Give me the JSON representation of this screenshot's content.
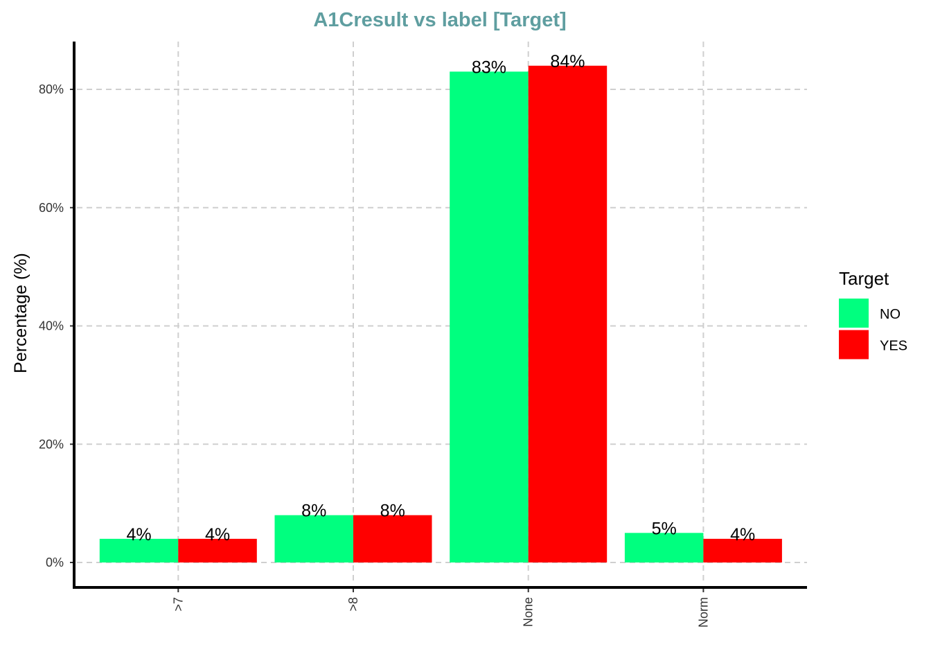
{
  "chart_data": {
    "type": "bar",
    "title": "A1Cresult vs label [Target]",
    "xlabel": "",
    "ylabel": "Percentage (%)",
    "categories": [
      ">7",
      ">8",
      "None",
      "Norm"
    ],
    "series": [
      {
        "name": "NO",
        "values": [
          4,
          8,
          83,
          5
        ],
        "labels": [
          "4%",
          "8%",
          "83%",
          "5%"
        ],
        "color": "#00ff7f"
      },
      {
        "name": "YES",
        "values": [
          4,
          8,
          84,
          4
        ],
        "labels": [
          "4%",
          "8%",
          "84%",
          "4%"
        ],
        "color": "#ff0000"
      }
    ],
    "yticks": [
      0,
      20,
      40,
      60,
      80
    ],
    "ytick_labels": [
      "0%",
      "20%",
      "40%",
      "60%",
      "80%"
    ],
    "ylim": [
      -4,
      88
    ],
    "grid": true,
    "legend": {
      "title": "Target",
      "position": "right"
    },
    "title_color": "#5f9ea0"
  }
}
